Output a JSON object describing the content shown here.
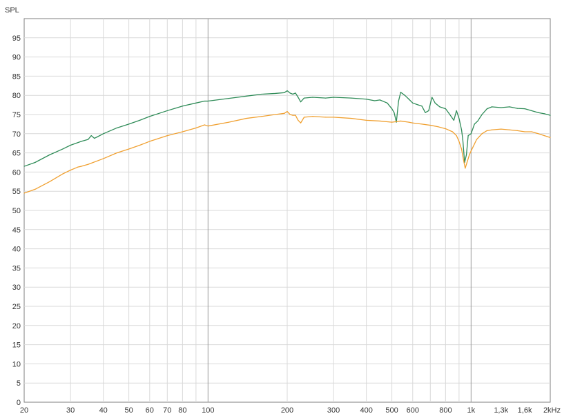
{
  "chart_data": {
    "type": "line",
    "ylabel": "SPL",
    "xscale": "log",
    "xlim": [
      20,
      2000
    ],
    "ylim": [
      0,
      100
    ],
    "grid": true,
    "x_ticks": [
      {
        "value": 20,
        "label": "20"
      },
      {
        "value": 30,
        "label": "30"
      },
      {
        "value": 40,
        "label": "40"
      },
      {
        "value": 50,
        "label": "50"
      },
      {
        "value": 60,
        "label": "60"
      },
      {
        "value": 70,
        "label": "70"
      },
      {
        "value": 80,
        "label": "80"
      },
      {
        "value": 100,
        "label": "100"
      },
      {
        "value": 200,
        "label": "200"
      },
      {
        "value": 300,
        "label": "300"
      },
      {
        "value": 400,
        "label": "400"
      },
      {
        "value": 500,
        "label": "500"
      },
      {
        "value": 600,
        "label": "600"
      },
      {
        "value": 800,
        "label": "800"
      },
      {
        "value": 1000,
        "label": "1k"
      },
      {
        "value": 1300,
        "label": "1,3k"
      },
      {
        "value": 1600,
        "label": "1,6k"
      },
      {
        "value": 2000,
        "label": "2kHz"
      }
    ],
    "y_ticks": [
      0,
      5,
      10,
      15,
      20,
      25,
      30,
      35,
      40,
      45,
      50,
      55,
      60,
      65,
      70,
      75,
      80,
      85,
      90,
      95
    ],
    "series": [
      {
        "color": "#2e8b57",
        "points": [
          [
            20,
            61.5
          ],
          [
            22,
            62.5
          ],
          [
            25,
            64.5
          ],
          [
            28,
            66
          ],
          [
            30,
            67
          ],
          [
            33,
            68
          ],
          [
            35,
            68.5
          ],
          [
            36,
            69.5
          ],
          [
            37,
            68.8
          ],
          [
            38,
            69.2
          ],
          [
            40,
            70
          ],
          [
            45,
            71.5
          ],
          [
            50,
            72.5
          ],
          [
            55,
            73.5
          ],
          [
            60,
            74.5
          ],
          [
            70,
            76
          ],
          [
            80,
            77.2
          ],
          [
            90,
            78
          ],
          [
            97,
            78.5
          ],
          [
            100,
            78.5
          ],
          [
            120,
            79.2
          ],
          [
            140,
            79.8
          ],
          [
            160,
            80.3
          ],
          [
            180,
            80.5
          ],
          [
            195,
            80.7
          ],
          [
            200,
            81.2
          ],
          [
            205,
            80.6
          ],
          [
            210,
            80.3
          ],
          [
            215,
            80.6
          ],
          [
            220,
            79.5
          ],
          [
            225,
            78.3
          ],
          [
            232,
            79.3
          ],
          [
            250,
            79.5
          ],
          [
            280,
            79.3
          ],
          [
            300,
            79.5
          ],
          [
            350,
            79.3
          ],
          [
            400,
            79.0
          ],
          [
            430,
            78.6
          ],
          [
            450,
            78.8
          ],
          [
            480,
            78.0
          ],
          [
            500,
            76.5
          ],
          [
            510,
            75.5
          ],
          [
            520,
            73.0
          ],
          [
            530,
            78.5
          ],
          [
            540,
            80.8
          ],
          [
            560,
            80.0
          ],
          [
            580,
            79.0
          ],
          [
            600,
            78.0
          ],
          [
            630,
            77.5
          ],
          [
            650,
            77.2
          ],
          [
            670,
            75.5
          ],
          [
            690,
            76.0
          ],
          [
            710,
            79.5
          ],
          [
            730,
            78.0
          ],
          [
            760,
            77.0
          ],
          [
            800,
            76.5
          ],
          [
            830,
            75.0
          ],
          [
            860,
            73.5
          ],
          [
            880,
            76.0
          ],
          [
            900,
            74.0
          ],
          [
            920,
            71.0
          ],
          [
            930,
            68.5
          ],
          [
            945,
            62.5
          ],
          [
            960,
            64.5
          ],
          [
            975,
            69.5
          ],
          [
            1000,
            70.0
          ],
          [
            1030,
            72.5
          ],
          [
            1060,
            73.3
          ],
          [
            1100,
            75.0
          ],
          [
            1150,
            76.5
          ],
          [
            1200,
            77.0
          ],
          [
            1300,
            76.8
          ],
          [
            1400,
            77.0
          ],
          [
            1500,
            76.6
          ],
          [
            1600,
            76.5
          ],
          [
            1700,
            76.0
          ],
          [
            1800,
            75.5
          ],
          [
            1900,
            75.2
          ],
          [
            2000,
            74.8
          ]
        ]
      },
      {
        "color": "#f0a030",
        "points": [
          [
            20,
            54.5
          ],
          [
            22,
            55.5
          ],
          [
            25,
            57.5
          ],
          [
            28,
            59.5
          ],
          [
            30,
            60.5
          ],
          [
            32,
            61.3
          ],
          [
            33,
            61.5
          ],
          [
            35,
            62.0
          ],
          [
            40,
            63.5
          ],
          [
            45,
            65.0
          ],
          [
            50,
            66.0
          ],
          [
            55,
            67.0
          ],
          [
            60,
            68.0
          ],
          [
            70,
            69.5
          ],
          [
            80,
            70.5
          ],
          [
            90,
            71.5
          ],
          [
            97,
            72.3
          ],
          [
            100,
            72.0
          ],
          [
            120,
            73.0
          ],
          [
            140,
            74.0
          ],
          [
            160,
            74.5
          ],
          [
            180,
            75.0
          ],
          [
            195,
            75.3
          ],
          [
            200,
            75.8
          ],
          [
            205,
            75.0
          ],
          [
            210,
            74.8
          ],
          [
            215,
            74.8
          ],
          [
            220,
            73.5
          ],
          [
            225,
            72.8
          ],
          [
            232,
            74.3
          ],
          [
            250,
            74.5
          ],
          [
            280,
            74.3
          ],
          [
            300,
            74.3
          ],
          [
            350,
            74.0
          ],
          [
            400,
            73.5
          ],
          [
            450,
            73.3
          ],
          [
            500,
            73.0
          ],
          [
            540,
            73.3
          ],
          [
            580,
            73.0
          ],
          [
            600,
            72.8
          ],
          [
            650,
            72.5
          ],
          [
            700,
            72.2
          ],
          [
            750,
            71.8
          ],
          [
            800,
            71.3
          ],
          [
            850,
            70.5
          ],
          [
            880,
            69.5
          ],
          [
            900,
            68.0
          ],
          [
            920,
            66.0
          ],
          [
            940,
            62.5
          ],
          [
            950,
            61.0
          ],
          [
            965,
            62.5
          ],
          [
            985,
            64.5
          ],
          [
            1000,
            65.5
          ],
          [
            1050,
            68.5
          ],
          [
            1100,
            70.0
          ],
          [
            1150,
            70.8
          ],
          [
            1200,
            71.0
          ],
          [
            1300,
            71.2
          ],
          [
            1400,
            71.0
          ],
          [
            1500,
            70.8
          ],
          [
            1600,
            70.5
          ],
          [
            1700,
            70.5
          ],
          [
            1800,
            70.0
          ],
          [
            1900,
            69.5
          ],
          [
            2000,
            69.0
          ]
        ]
      }
    ]
  }
}
